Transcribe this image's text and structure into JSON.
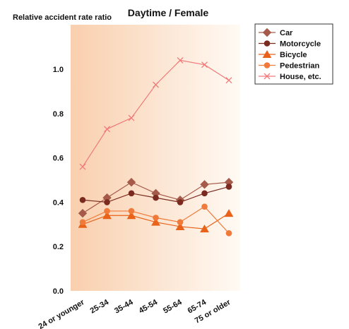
{
  "chart_data": {
    "type": "line",
    "title": "Daytime / Female",
    "ylabel": "Relative accident rate ratio",
    "xlabel": "",
    "categories": [
      "24 or younger",
      "25-34",
      "35-44",
      "45-54",
      "55-64",
      "65-74",
      "75 or older"
    ],
    "ylim": [
      0,
      1.2
    ],
    "yticks": [
      "0.0",
      "0.2",
      "0.4",
      "0.6",
      "0.8",
      "1.0"
    ],
    "grid": false,
    "legend_position": "top-right",
    "series": [
      {
        "name": "Car",
        "marker": "diamond",
        "color": "#a55a4a",
        "values": [
          0.35,
          0.42,
          0.49,
          0.44,
          0.41,
          0.48,
          0.49
        ]
      },
      {
        "name": "Motorcycle",
        "marker": "circle",
        "color": "#7a2a1e",
        "values": [
          0.41,
          0.4,
          0.44,
          0.42,
          0.4,
          0.44,
          0.47
        ]
      },
      {
        "name": "Bicycle",
        "marker": "triangle",
        "color": "#e8621a",
        "values": [
          0.3,
          0.34,
          0.34,
          0.31,
          0.29,
          0.28,
          0.35
        ]
      },
      {
        "name": "Pedestrian",
        "marker": "circle",
        "color": "#f07a3a",
        "values": [
          0.31,
          0.36,
          0.36,
          0.33,
          0.31,
          0.38,
          0.26
        ]
      },
      {
        "name": "House, etc.",
        "marker": "x",
        "color": "#f07a7a",
        "values": [
          0.56,
          0.73,
          0.78,
          0.93,
          1.04,
          1.02,
          0.95
        ]
      }
    ]
  }
}
